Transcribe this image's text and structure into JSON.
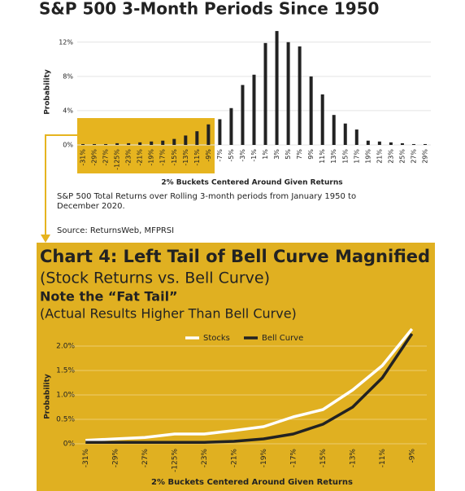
{
  "chart_data": [
    {
      "type": "bar",
      "title": "S&P 500 3-Month Periods Since 1950",
      "y_label": "Probability",
      "x_label": "2% Buckets Centered Around Given Returns",
      "caption": "S&P 500 Total Returns over Rolling 3-month periods from January 1950 to December 2020.",
      "source": "Source: ReturnsWeb, MFPRSI",
      "categories": [
        "-31%",
        "-29%",
        "-27%",
        "-125%",
        "-23%",
        "-21%",
        "-19%",
        "-17%",
        "-15%",
        "-13%",
        "-11%",
        "-9%",
        "-7%",
        "-5%",
        "-3%",
        "-1%",
        "1%",
        "3%",
        "5%",
        "7%",
        "9%",
        "11%",
        "13%",
        "15%",
        "17%",
        "19%",
        "21%",
        "23%",
        "25%",
        "27%",
        "29%"
      ],
      "values": [
        0.1,
        0.1,
        0.1,
        0.2,
        0.2,
        0.3,
        0.4,
        0.5,
        0.7,
        1.1,
        1.6,
        2.4,
        3.0,
        4.3,
        7.0,
        8.2,
        11.9,
        13.3,
        12.0,
        11.5,
        8.0,
        5.9,
        3.5,
        2.5,
        1.8,
        0.5,
        0.4,
        0.3,
        0.2,
        0.1,
        0.1
      ],
      "color": "#222222",
      "ylim": [
        0,
        13.5
      ],
      "yticks": [
        {
          "value": 0,
          "label": "0%"
        },
        {
          "value": 4,
          "label": "4%"
        },
        {
          "value": 8,
          "label": "8%"
        },
        {
          "value": 12,
          "label": "12%"
        }
      ],
      "grid": true
    },
    {
      "type": "line",
      "title": "Chart 4: Left Tail of Bell Curve Magnified",
      "subtitle": "(Stock Returns vs. Bell Curve)",
      "note": "Note the “Fat Tail”",
      "note_detail": "(Actual Results Higher Than Bell Curve)",
      "y_label": "Probability",
      "x_label": "2% Buckets Centered Around Given Returns",
      "categories": [
        "-31%",
        "-29%",
        "-27%",
        "-125%",
        "-23%",
        "-21%",
        "-19%",
        "-17%",
        "-15%",
        "-13%",
        "-11%",
        "-9%"
      ],
      "series": [
        {
          "name": "Stocks",
          "color": "#ffffff",
          "values": [
            0.07,
            0.1,
            0.13,
            0.2,
            0.2,
            0.27,
            0.35,
            0.55,
            0.7,
            1.1,
            1.6,
            2.35
          ]
        },
        {
          "name": "Bell Curve",
          "color": "#222222",
          "values": [
            0.03,
            0.03,
            0.03,
            0.03,
            0.03,
            0.05,
            0.1,
            0.2,
            0.4,
            0.75,
            1.35,
            2.25
          ]
        }
      ],
      "ylim": [
        0,
        2.4
      ],
      "yticks": [
        {
          "value": 0,
          "label": "0%"
        },
        {
          "value": 0.5,
          "label": "0.5%"
        },
        {
          "value": 1.0,
          "label": "1.0%"
        },
        {
          "value": 1.5,
          "label": "1.5%"
        },
        {
          "value": 2.0,
          "label": "2.0%"
        }
      ],
      "grid": true,
      "legend": "top"
    }
  ]
}
